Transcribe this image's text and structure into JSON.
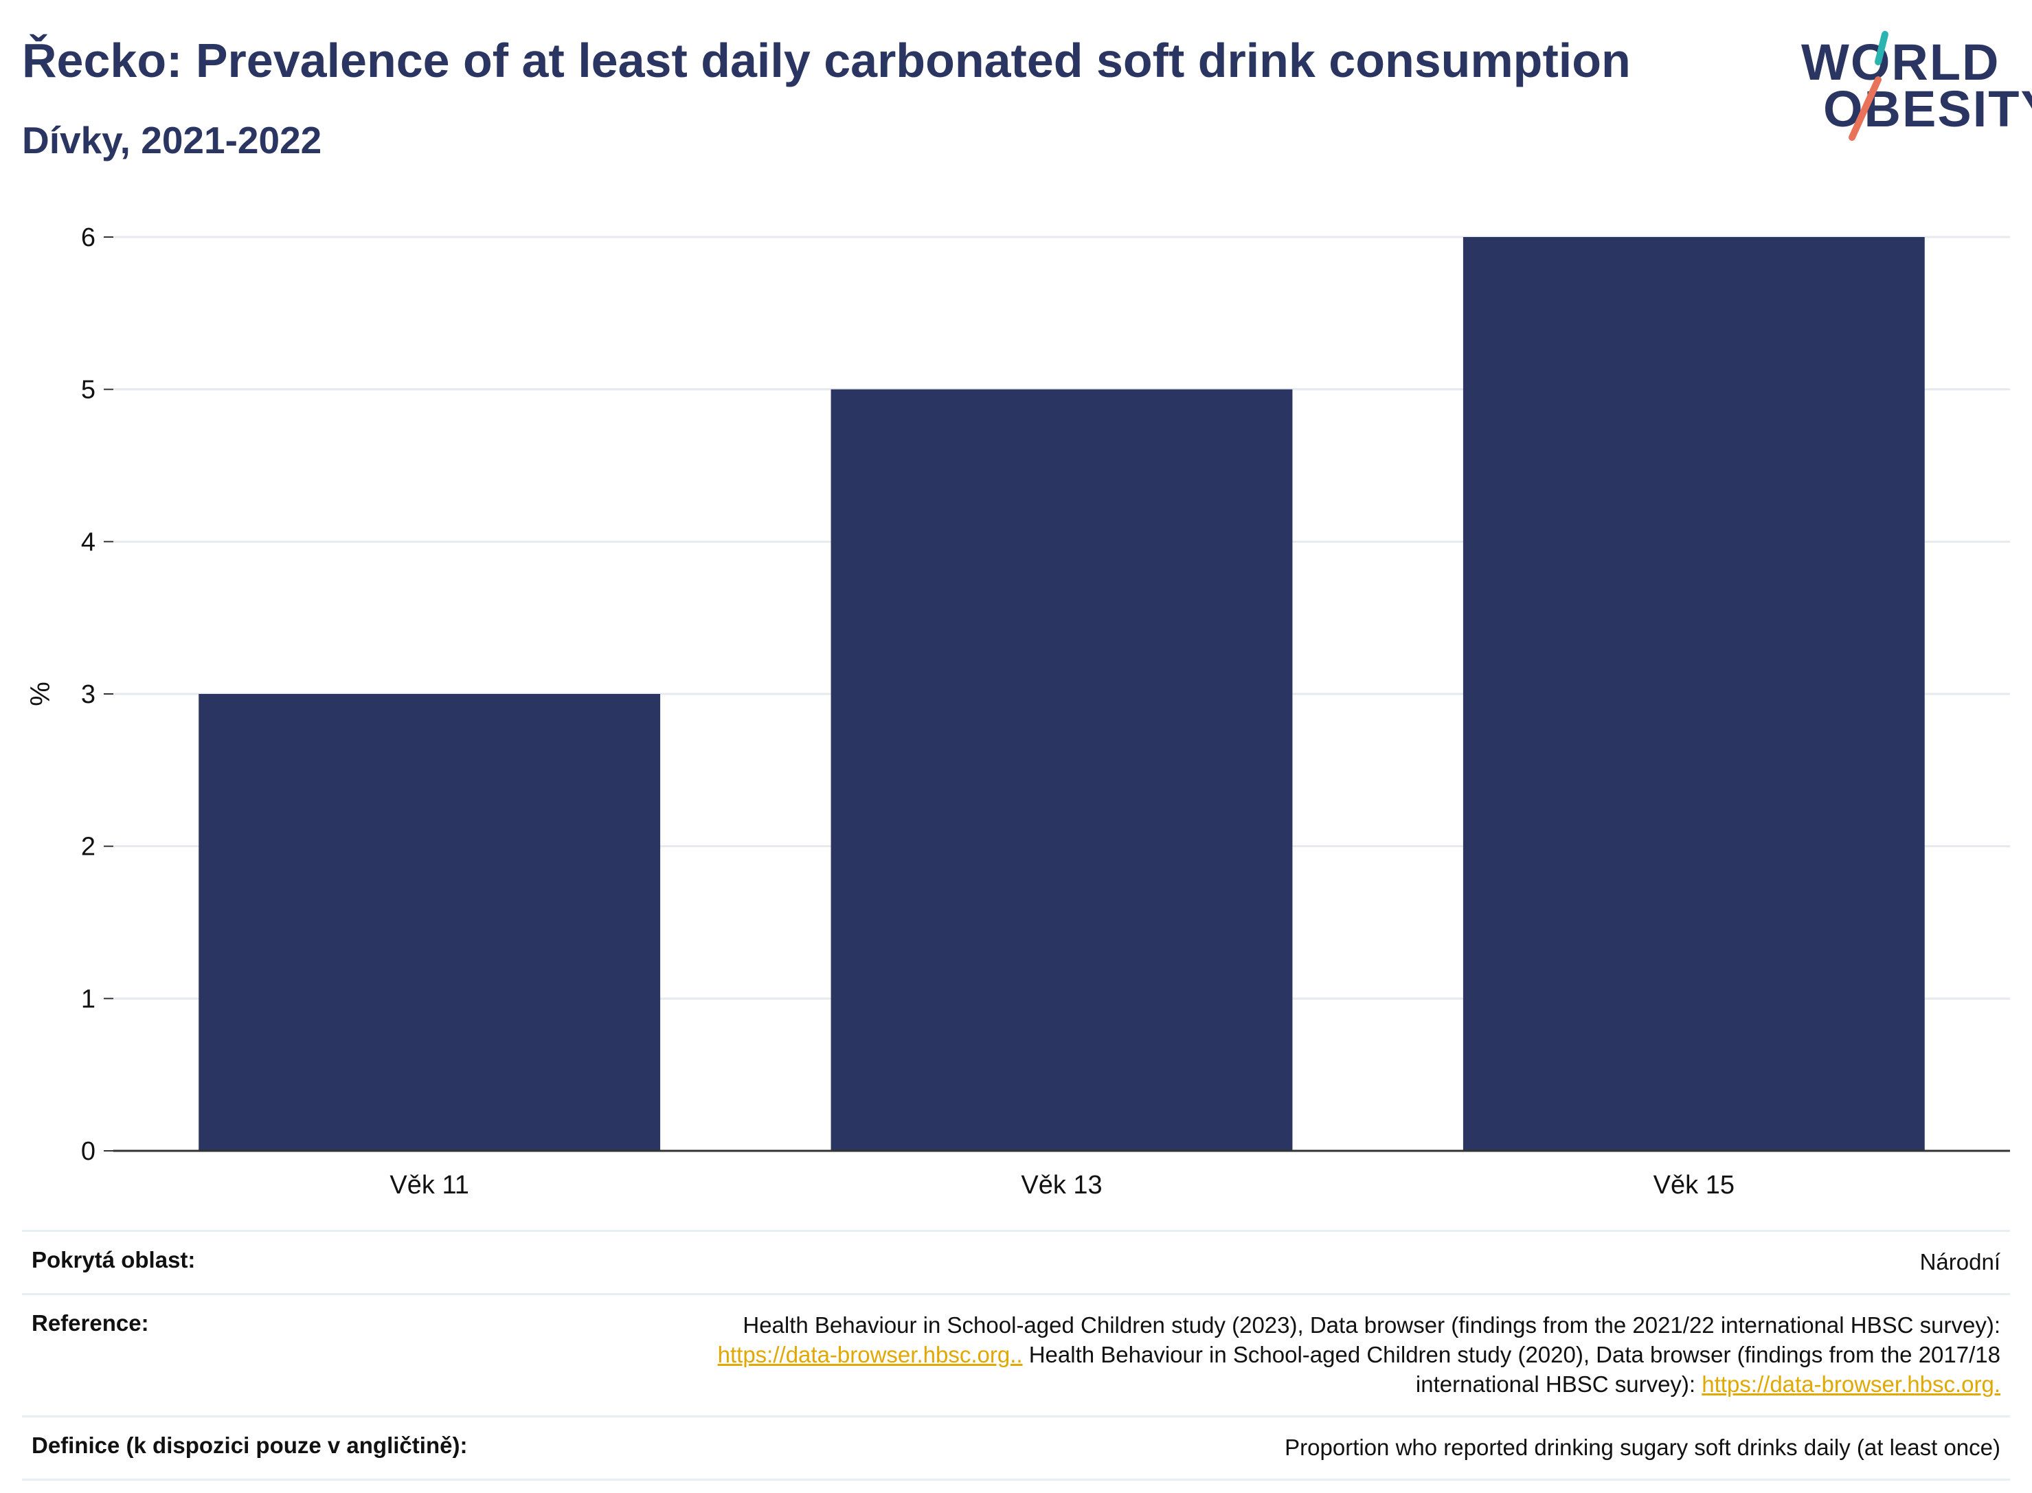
{
  "header": {
    "title": "Řecko: Prevalence of at least daily carbonated soft drink consumption",
    "subtitle": "Dívky, 2021-2022"
  },
  "logo": {
    "line1": "WORLD",
    "line2": "OBESITY",
    "accent_teal": "#2bb3b1",
    "accent_coral": "#e8735a"
  },
  "colors": {
    "bar": "#2a3561",
    "grid": "#e6eaee",
    "axis": "#333333"
  },
  "chart_data": {
    "type": "bar",
    "categories": [
      "Věk 11",
      "Věk 13",
      "Věk 15"
    ],
    "values": [
      3,
      5,
      6
    ],
    "title": "Řecko: Prevalence of at least daily carbonated soft drink consumption",
    "subtitle": "Dívky, 2021-2022",
    "xlabel": "",
    "ylabel": "%",
    "ylim": [
      0,
      6
    ],
    "yticks": [
      0,
      1,
      2,
      3,
      4,
      5,
      6
    ],
    "grid": true
  },
  "info": {
    "coverage_label": "Pokrytá oblast:",
    "coverage_value": "Národní",
    "reference_label": "Reference:",
    "reference_text1": "Health Behaviour in School-aged Children study (2023), Data browser (findings from the 2021/22 international HBSC survey):",
    "reference_link1": "https://data-browser.hbsc.org..",
    "reference_text2": " Health Behaviour in School-aged Children study (2020), Data browser (findings from the 2017/18",
    "reference_text3": "international HBSC survey): ",
    "reference_link2": "https://data-browser.hbsc.org.",
    "definition_label": "Definice (k dispozici pouze v angličtině):",
    "definition_value": "Proportion who reported drinking sugary soft drinks daily (at least once)"
  }
}
